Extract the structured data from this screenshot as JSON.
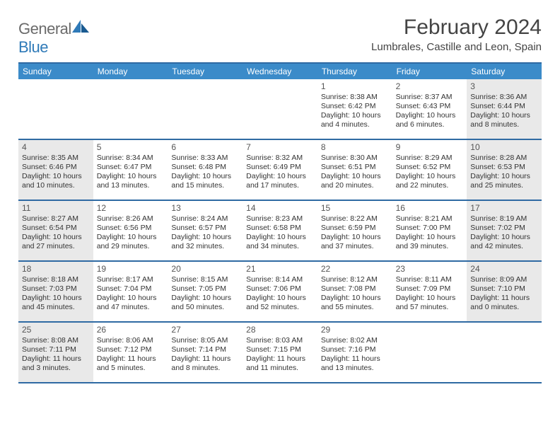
{
  "brand": {
    "part1": "General",
    "part2": "Blue"
  },
  "title": "February 2024",
  "location": "Lumbrales, Castille and Leon, Spain",
  "colors": {
    "header_bg": "#3b8bc9",
    "border": "#2f6aa3",
    "shade": "#e9e9e9",
    "text": "#333333",
    "brand_gray": "#6b6b6b",
    "brand_blue": "#2f7ab8"
  },
  "dow": [
    "Sunday",
    "Monday",
    "Tuesday",
    "Wednesday",
    "Thursday",
    "Friday",
    "Saturday"
  ],
  "weeks": [
    [
      {
        "n": "",
        "shade": false
      },
      {
        "n": "",
        "shade": false
      },
      {
        "n": "",
        "shade": false
      },
      {
        "n": "",
        "shade": false
      },
      {
        "n": "1",
        "shade": false,
        "sunrise": "8:38 AM",
        "sunset": "6:42 PM",
        "daylight": "10 hours and 4 minutes."
      },
      {
        "n": "2",
        "shade": false,
        "sunrise": "8:37 AM",
        "sunset": "6:43 PM",
        "daylight": "10 hours and 6 minutes."
      },
      {
        "n": "3",
        "shade": true,
        "sunrise": "8:36 AM",
        "sunset": "6:44 PM",
        "daylight": "10 hours and 8 minutes."
      }
    ],
    [
      {
        "n": "4",
        "shade": true,
        "sunrise": "8:35 AM",
        "sunset": "6:46 PM",
        "daylight": "10 hours and 10 minutes."
      },
      {
        "n": "5",
        "shade": false,
        "sunrise": "8:34 AM",
        "sunset": "6:47 PM",
        "daylight": "10 hours and 13 minutes."
      },
      {
        "n": "6",
        "shade": false,
        "sunrise": "8:33 AM",
        "sunset": "6:48 PM",
        "daylight": "10 hours and 15 minutes."
      },
      {
        "n": "7",
        "shade": false,
        "sunrise": "8:32 AM",
        "sunset": "6:49 PM",
        "daylight": "10 hours and 17 minutes."
      },
      {
        "n": "8",
        "shade": false,
        "sunrise": "8:30 AM",
        "sunset": "6:51 PM",
        "daylight": "10 hours and 20 minutes."
      },
      {
        "n": "9",
        "shade": false,
        "sunrise": "8:29 AM",
        "sunset": "6:52 PM",
        "daylight": "10 hours and 22 minutes."
      },
      {
        "n": "10",
        "shade": true,
        "sunrise": "8:28 AM",
        "sunset": "6:53 PM",
        "daylight": "10 hours and 25 minutes."
      }
    ],
    [
      {
        "n": "11",
        "shade": true,
        "sunrise": "8:27 AM",
        "sunset": "6:54 PM",
        "daylight": "10 hours and 27 minutes."
      },
      {
        "n": "12",
        "shade": false,
        "sunrise": "8:26 AM",
        "sunset": "6:56 PM",
        "daylight": "10 hours and 29 minutes."
      },
      {
        "n": "13",
        "shade": false,
        "sunrise": "8:24 AM",
        "sunset": "6:57 PM",
        "daylight": "10 hours and 32 minutes."
      },
      {
        "n": "14",
        "shade": false,
        "sunrise": "8:23 AM",
        "sunset": "6:58 PM",
        "daylight": "10 hours and 34 minutes."
      },
      {
        "n": "15",
        "shade": false,
        "sunrise": "8:22 AM",
        "sunset": "6:59 PM",
        "daylight": "10 hours and 37 minutes."
      },
      {
        "n": "16",
        "shade": false,
        "sunrise": "8:21 AM",
        "sunset": "7:00 PM",
        "daylight": "10 hours and 39 minutes."
      },
      {
        "n": "17",
        "shade": true,
        "sunrise": "8:19 AM",
        "sunset": "7:02 PM",
        "daylight": "10 hours and 42 minutes."
      }
    ],
    [
      {
        "n": "18",
        "shade": true,
        "sunrise": "8:18 AM",
        "sunset": "7:03 PM",
        "daylight": "10 hours and 45 minutes."
      },
      {
        "n": "19",
        "shade": false,
        "sunrise": "8:17 AM",
        "sunset": "7:04 PM",
        "daylight": "10 hours and 47 minutes."
      },
      {
        "n": "20",
        "shade": false,
        "sunrise": "8:15 AM",
        "sunset": "7:05 PM",
        "daylight": "10 hours and 50 minutes."
      },
      {
        "n": "21",
        "shade": false,
        "sunrise": "8:14 AM",
        "sunset": "7:06 PM",
        "daylight": "10 hours and 52 minutes."
      },
      {
        "n": "22",
        "shade": false,
        "sunrise": "8:12 AM",
        "sunset": "7:08 PM",
        "daylight": "10 hours and 55 minutes."
      },
      {
        "n": "23",
        "shade": false,
        "sunrise": "8:11 AM",
        "sunset": "7:09 PM",
        "daylight": "10 hours and 57 minutes."
      },
      {
        "n": "24",
        "shade": true,
        "sunrise": "8:09 AM",
        "sunset": "7:10 PM",
        "daylight": "11 hours and 0 minutes."
      }
    ],
    [
      {
        "n": "25",
        "shade": true,
        "sunrise": "8:08 AM",
        "sunset": "7:11 PM",
        "daylight": "11 hours and 3 minutes."
      },
      {
        "n": "26",
        "shade": false,
        "sunrise": "8:06 AM",
        "sunset": "7:12 PM",
        "daylight": "11 hours and 5 minutes."
      },
      {
        "n": "27",
        "shade": false,
        "sunrise": "8:05 AM",
        "sunset": "7:14 PM",
        "daylight": "11 hours and 8 minutes."
      },
      {
        "n": "28",
        "shade": false,
        "sunrise": "8:03 AM",
        "sunset": "7:15 PM",
        "daylight": "11 hours and 11 minutes."
      },
      {
        "n": "29",
        "shade": false,
        "sunrise": "8:02 AM",
        "sunset": "7:16 PM",
        "daylight": "11 hours and 13 minutes."
      },
      {
        "n": "",
        "shade": false
      },
      {
        "n": "",
        "shade": false
      }
    ]
  ],
  "labels": {
    "sunrise": "Sunrise: ",
    "sunset": "Sunset: ",
    "daylight": "Daylight: "
  }
}
